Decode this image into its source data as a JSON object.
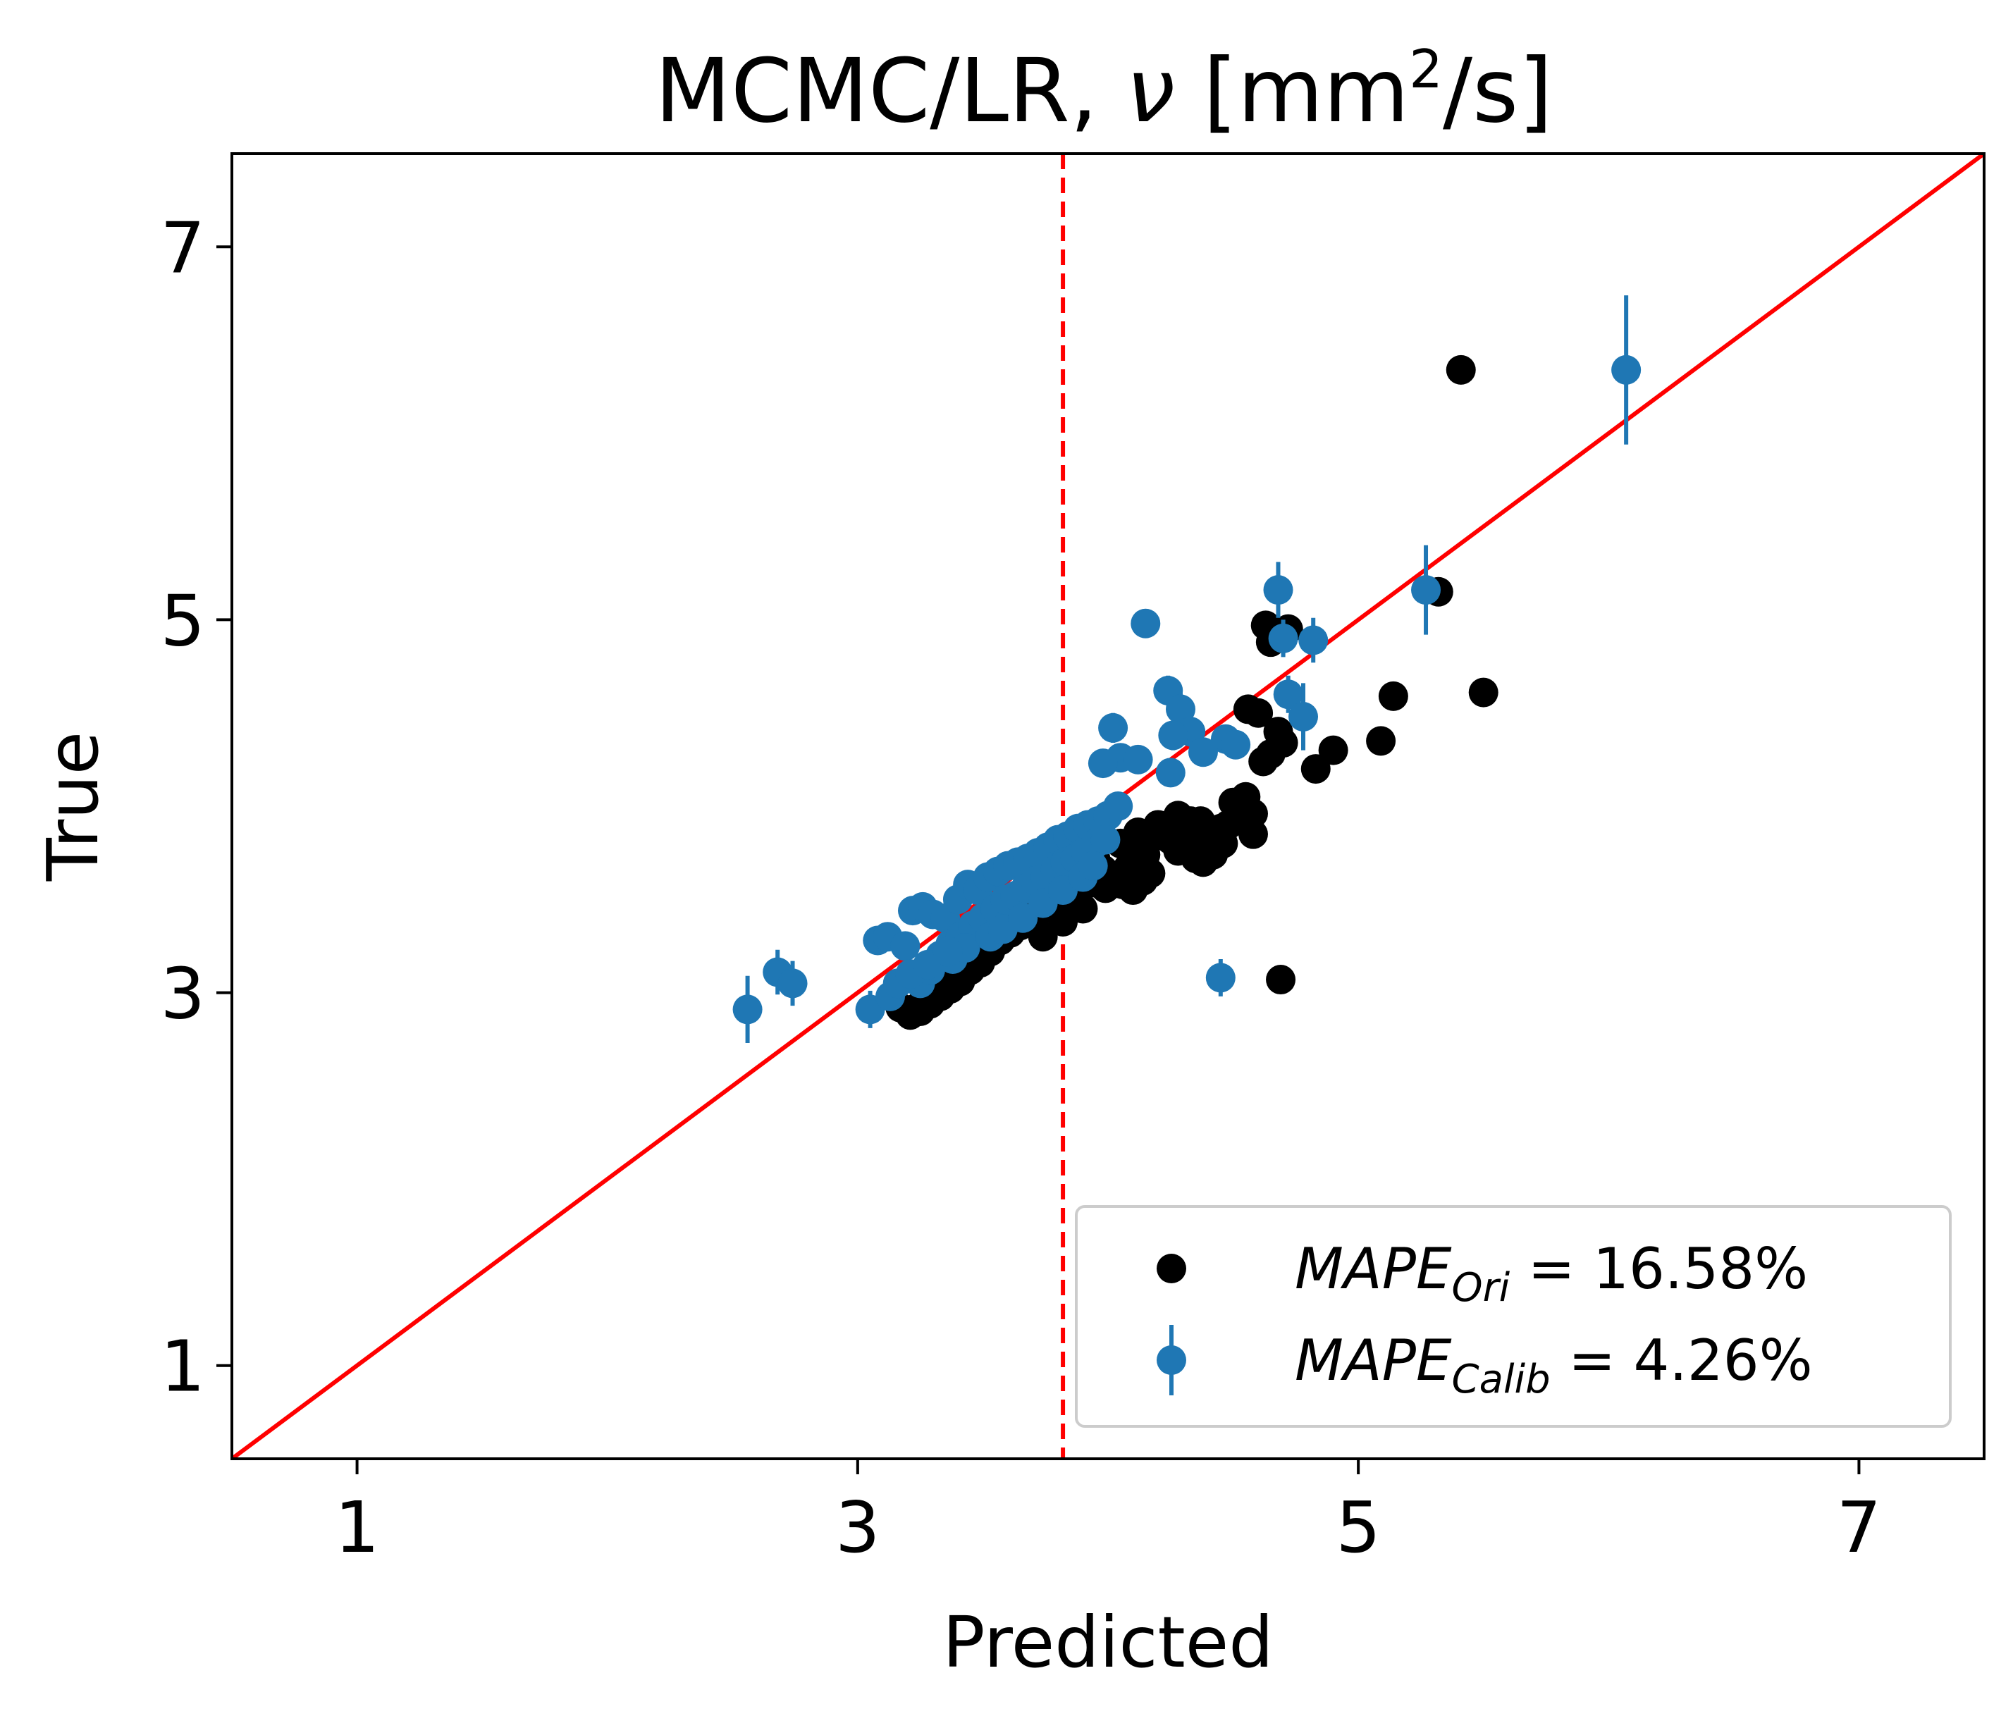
{
  "chart_data": {
    "type": "scatter",
    "title": {
      "main": "MCMC/LR, ",
      "symbol": "ν",
      "unit_open": " [mm",
      "unit_sup": "2",
      "unit_close": "/s]"
    },
    "xlabel": "Predicted",
    "ylabel": "True",
    "xlim": [
      0.5,
      7.5
    ],
    "ylim": [
      0.5,
      7.5
    ],
    "xticks": [
      1,
      3,
      5,
      7
    ],
    "yticks": [
      1,
      3,
      5,
      7
    ],
    "xtick_labels": [
      "1",
      "3",
      "5",
      "7"
    ],
    "ytick_labels": [
      "1",
      "3",
      "5",
      "7"
    ],
    "grid": false,
    "legend_position": "lower-right",
    "identity_line": {
      "color": "#ff0000",
      "x": [
        0.5,
        7.5
      ],
      "y": [
        0.5,
        7.5
      ]
    },
    "vertical_line": {
      "x": 3.82,
      "color": "#ff0000",
      "style": "dashed"
    },
    "series": [
      {
        "name": "Ori",
        "legend_main": "MAPE",
        "legend_sub": "Ori",
        "legend_value": " = 16.58%",
        "color": "#000000",
        "marker": "circle",
        "x": [
          5.41,
          5.32,
          5.5,
          5.14,
          5.09,
          4.9,
          4.83,
          4.67,
          4.63,
          4.65,
          4.72,
          4.6,
          4.56,
          4.65,
          4.7,
          4.62,
          4.68,
          4.55,
          4.53,
          4.58,
          4.5,
          4.46,
          4.42,
          4.38,
          4.35,
          4.3,
          4.33,
          4.28,
          4.25,
          4.21,
          4.17,
          4.14,
          4.1,
          4.06,
          4.02,
          3.98,
          3.94,
          3.9,
          3.86,
          3.81,
          3.77,
          3.73,
          3.69,
          3.65,
          3.61,
          3.57,
          3.53,
          3.49,
          3.45,
          3.41,
          3.37,
          3.33,
          3.29,
          3.25,
          3.21,
          3.17,
          3.39,
          3.46,
          3.55,
          3.62,
          3.7,
          3.78,
          3.86,
          3.95,
          4.05,
          4.12,
          4.2,
          4.28,
          4.37,
          4.45,
          4.52,
          4.58,
          3.42,
          3.38,
          3.35,
          3.31,
          3.26,
          3.22,
          3.74,
          3.82,
          3.9,
          3.99,
          4.08,
          4.15,
          4.24,
          4.32,
          4.4,
          4.48,
          4.69
        ],
        "y": [
          6.34,
          5.15,
          4.61,
          4.59,
          4.35,
          4.3,
          4.2,
          4.94,
          4.97,
          4.88,
          4.95,
          4.5,
          4.52,
          4.28,
          4.34,
          4.24,
          4.4,
          4.05,
          3.98,
          3.85,
          4.02,
          3.8,
          3.74,
          3.7,
          3.72,
          3.84,
          3.92,
          3.76,
          3.82,
          3.86,
          3.64,
          3.6,
          3.55,
          3.58,
          3.63,
          3.66,
          3.59,
          3.62,
          3.55,
          3.48,
          3.52,
          3.44,
          3.4,
          3.36,
          3.32,
          3.28,
          3.22,
          3.16,
          3.12,
          3.06,
          3.02,
          2.98,
          2.94,
          2.9,
          2.88,
          2.92,
          3.25,
          3.31,
          3.4,
          3.46,
          3.52,
          3.58,
          3.65,
          3.72,
          3.8,
          3.86,
          3.9,
          3.95,
          3.92,
          3.88,
          3.93,
          3.96,
          3.18,
          3.1,
          3.04,
          2.99,
          2.95,
          2.91,
          3.3,
          3.38,
          3.45,
          3.56,
          3.67,
          3.74,
          3.83,
          3.87,
          3.81,
          3.9,
          3.07
        ]
      },
      {
        "name": "Calib",
        "legend_main": "MAPE",
        "legend_sub": "Calib",
        "legend_value": " = 4.26%",
        "color": "#1f77b4",
        "marker": "circle",
        "error_bars": true,
        "x": [
          6.07,
          5.27,
          4.68,
          4.7,
          4.82,
          4.72,
          4.78,
          4.15,
          4.24,
          4.29,
          4.33,
          4.26,
          4.47,
          4.51,
          4.38,
          4.05,
          3.98,
          4.12,
          4.02,
          4.25,
          4.45,
          2.56,
          2.68,
          2.74,
          3.05,
          3.08,
          3.12,
          3.19,
          3.22,
          3.26,
          3.3,
          3.35,
          3.4,
          3.44,
          3.48,
          3.52,
          3.56,
          3.6,
          3.64,
          3.68,
          3.72,
          3.76,
          3.8,
          3.84,
          3.88,
          3.92,
          3.96,
          4.0,
          4.04,
          3.33,
          3.37,
          3.41,
          3.46,
          3.5,
          3.55,
          3.59,
          3.63,
          3.67,
          3.71,
          3.75,
          3.79,
          3.83,
          3.87,
          3.91,
          3.95,
          3.99,
          3.25,
          3.29,
          3.38,
          3.43,
          3.53,
          3.58,
          3.66,
          3.74,
          3.82,
          3.9,
          3.94,
          3.13,
          3.16,
          3.21,
          3.28,
          3.36
        ],
        "y": [
          6.34,
          5.16,
          5.16,
          4.9,
          4.89,
          4.6,
          4.48,
          4.98,
          4.62,
          4.52,
          4.4,
          4.38,
          4.36,
          4.33,
          4.29,
          4.26,
          4.23,
          4.25,
          4.42,
          4.18,
          3.08,
          2.91,
          3.11,
          3.05,
          2.91,
          3.28,
          3.3,
          3.25,
          3.44,
          3.46,
          3.42,
          3.4,
          3.5,
          3.58,
          3.55,
          3.62,
          3.65,
          3.68,
          3.7,
          3.72,
          3.75,
          3.78,
          3.82,
          3.84,
          3.88,
          3.9,
          3.92,
          3.95,
          4.0,
          3.2,
          3.26,
          3.3,
          3.36,
          3.4,
          3.45,
          3.5,
          3.52,
          3.56,
          3.6,
          3.62,
          3.66,
          3.7,
          3.72,
          3.76,
          3.8,
          3.82,
          3.05,
          3.12,
          3.18,
          3.24,
          3.3,
          3.34,
          3.4,
          3.48,
          3.55,
          3.62,
          3.68,
          2.98,
          3.05,
          3.1,
          3.15,
          3.22
        ],
        "yerr": [
          0.4,
          0.24,
          0.15,
          0.1,
          0.12,
          0.1,
          0.18,
          0.06,
          0.08,
          0.1,
          0.08,
          0.08,
          0.06,
          0.06,
          0.06,
          0.06,
          0.06,
          0.06,
          0.08,
          0.06,
          0.1,
          0.18,
          0.12,
          0.12,
          0.1,
          0.06,
          0.06,
          0.06,
          0.05,
          0.05,
          0.05,
          0.05,
          0.05,
          0.05,
          0.05,
          0.05,
          0.05,
          0.05,
          0.05,
          0.05,
          0.05,
          0.05,
          0.05,
          0.05,
          0.05,
          0.05,
          0.05,
          0.05,
          0.05,
          0.05,
          0.05,
          0.05,
          0.05,
          0.05,
          0.05,
          0.05,
          0.05,
          0.05,
          0.05,
          0.05,
          0.05,
          0.05,
          0.05,
          0.05,
          0.05,
          0.05,
          0.06,
          0.05,
          0.05,
          0.05,
          0.05,
          0.05,
          0.05,
          0.05,
          0.05,
          0.05,
          0.05,
          0.06,
          0.06,
          0.06,
          0.05,
          0.05
        ]
      }
    ]
  }
}
